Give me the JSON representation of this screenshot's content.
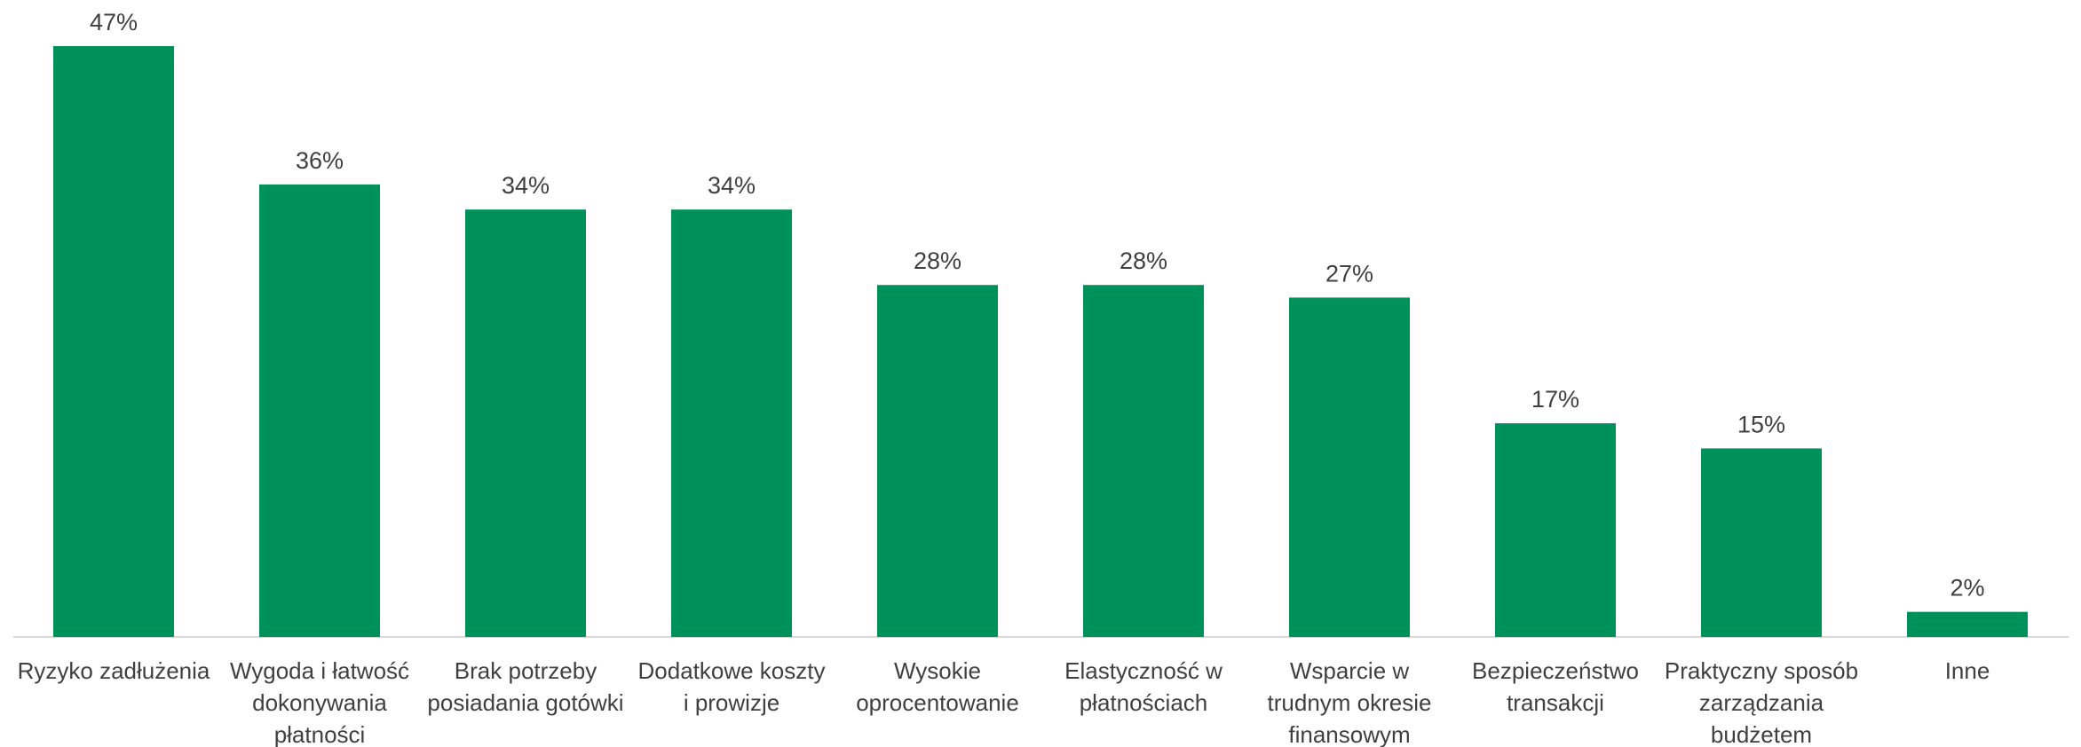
{
  "chart_data": {
    "type": "bar",
    "title": "",
    "xlabel": "",
    "ylabel": "",
    "ylim": [
      0,
      47
    ],
    "grid": false,
    "legend": "none",
    "value_suffix": "%",
    "bar_color": "#00915A",
    "baseline_color": "#D9D9D9",
    "categories": [
      [
        "Ryzyko zadłużenia"
      ],
      [
        "Wygoda i łatwość",
        "dokonywania",
        "płatności"
      ],
      [
        "Brak potrzeby",
        "posiadania gotówki"
      ],
      [
        "Dodatkowe koszty",
        "i prowizje"
      ],
      [
        "Wysokie",
        "oprocentowanie"
      ],
      [
        "Elastyczność w",
        "płatnościach"
      ],
      [
        "Wsparcie w",
        "trudnym okresie",
        "finansowym"
      ],
      [
        "Bezpieczeństwo",
        "transakcji"
      ],
      [
        "Praktyczny sposób",
        "zarządzania",
        "budżetem"
      ],
      [
        "Inne"
      ]
    ],
    "values": [
      47,
      36,
      34,
      34,
      28,
      28,
      27,
      17,
      15,
      2
    ],
    "labels": [
      "47%",
      "36%",
      "34%",
      "34%",
      "28%",
      "28%",
      "27%",
      "17%",
      "15%",
      "2%"
    ]
  }
}
